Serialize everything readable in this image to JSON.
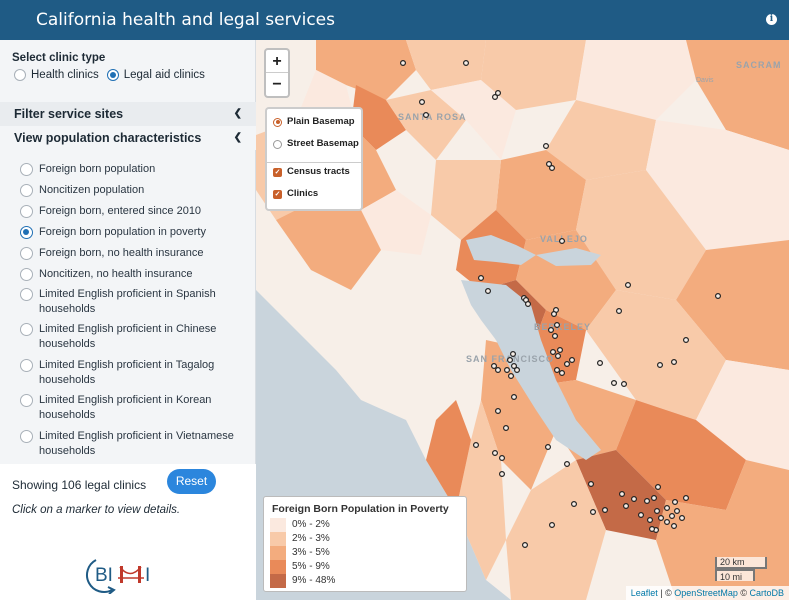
{
  "header": {
    "title": "California health and legal services"
  },
  "clinic_type": {
    "label": "Select clinic type",
    "options": [
      "Health clinics",
      "Legal aid clinics"
    ],
    "selected": "Legal aid clinics"
  },
  "accordions": {
    "filter": "Filter service sites",
    "view": "View population characteristics"
  },
  "population_options": [
    "Foreign born population",
    "Noncitizen population",
    "Foreign born, entered since 2010",
    "Foreign born population in poverty",
    "Foreign born, no health insurance",
    "Noncitizen, no health insurance",
    "Limited English proficient in Spanish households",
    "Limited English proficient in Chinese households",
    "Limited English proficient in Tagalog households",
    "Limited English proficient in Korean households",
    "Limited English proficient in Vietnamese households"
  ],
  "population_selected": "Foreign born population in poverty",
  "status": {
    "showing": "Showing 106 legal clinics",
    "reset": "Reset",
    "hint": "Click on a marker to view details."
  },
  "logo_text": "BIMI",
  "map": {
    "zoom_in": "+",
    "zoom_out": "−",
    "layers": {
      "basemaps": [
        "Plain Basemap",
        "Street Basemap"
      ],
      "selected_basemap": "Plain Basemap",
      "overlays": [
        "Census tracts",
        "Clinics"
      ]
    },
    "place_labels": [
      "SACRAM",
      "Davis",
      "SANTA ROSA",
      "VALLEJO",
      "SAN FRANCISCO",
      "BERKELEY"
    ],
    "legend": {
      "title": "Foreign Born Population in Poverty",
      "bins": [
        "0% - 2%",
        "2% - 3%",
        "3% - 5%",
        "5% - 9%",
        "9% - 48%"
      ],
      "colors": [
        "#fbe9df",
        "#f8caa9",
        "#f3ac7e",
        "#e98a59",
        "#c46a47"
      ]
    },
    "scale": {
      "km": "20 km",
      "mi": "10 mi"
    },
    "attribution": {
      "leaflet": "Leaflet",
      "osm": "OpenStreetMap",
      "carto": "CartoDB"
    },
    "water_color": "#c9d4dc",
    "marker_color": "#222222"
  }
}
